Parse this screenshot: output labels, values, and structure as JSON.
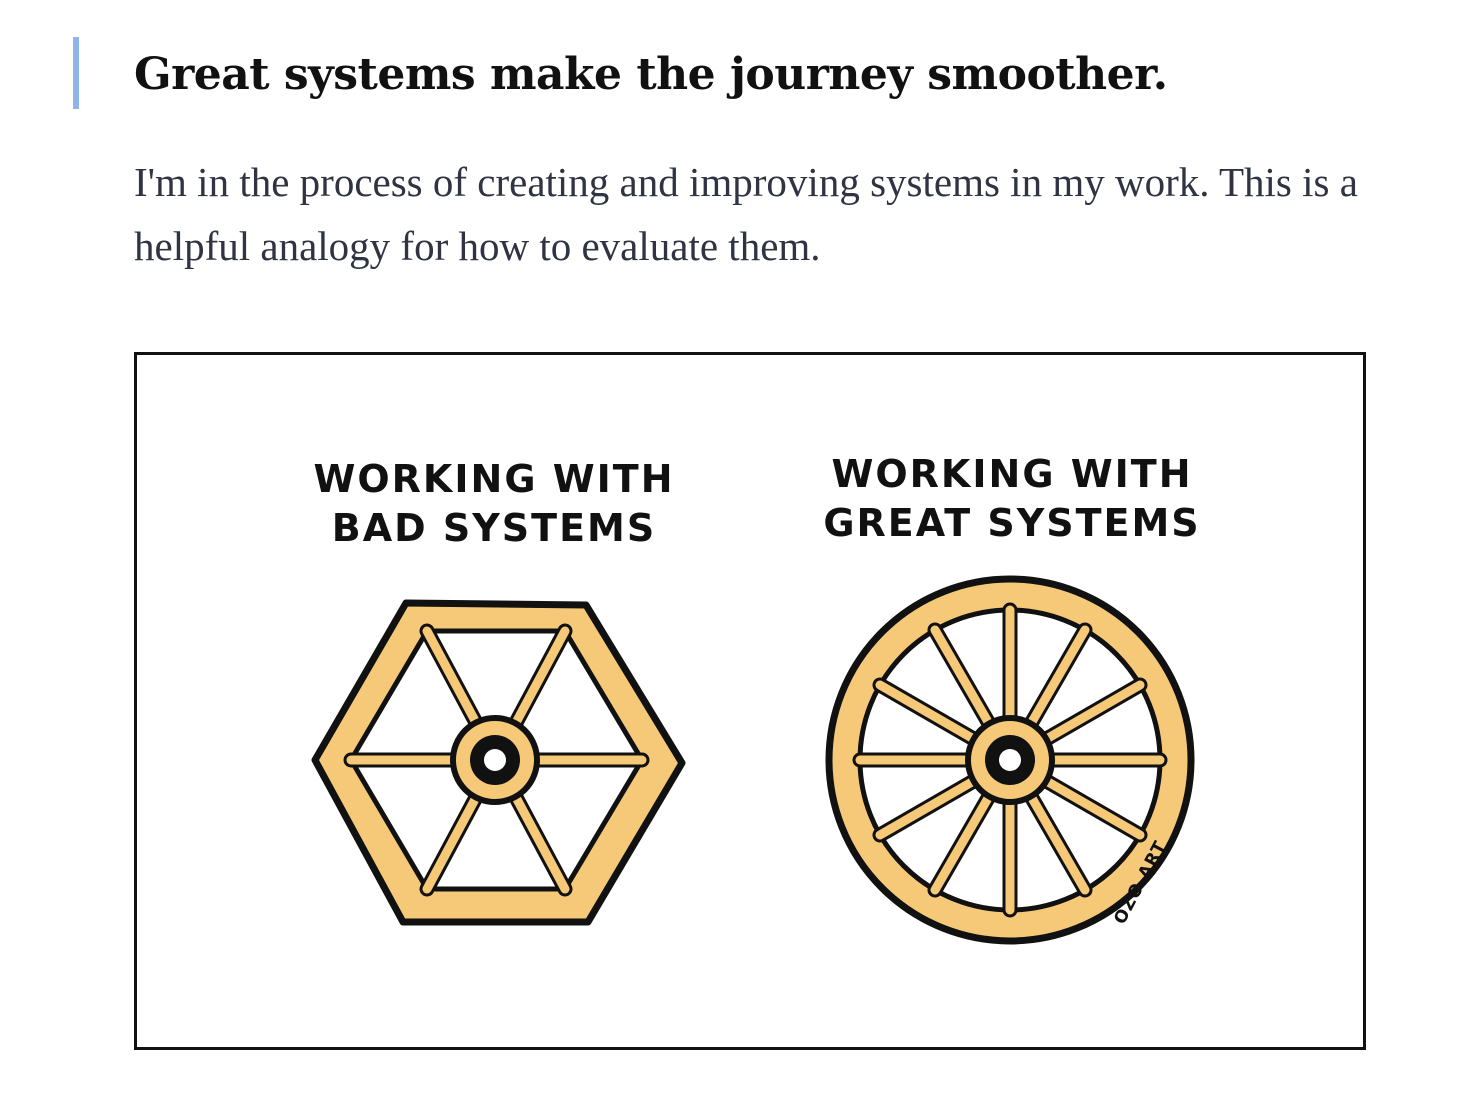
{
  "article": {
    "title": "Great systems make the journey smoother.",
    "paragraph": "I'm in the process of creating and improving systems in my work. This is a helpful analogy for how to evaluate them."
  },
  "illustration": {
    "left_heading_line1": "WORKING WITH",
    "left_heading_line2": "BAD SYSTEMS",
    "right_heading_line1": "WORKING WITH",
    "right_heading_line2": "GREAT SYSTEMS",
    "signature": "OZO.ART",
    "left_icon": "hexagon-wheel-icon",
    "right_icon": "round-wheel-icon",
    "colors": {
      "wood": "#f6c978",
      "ink": "#111111",
      "quote_bar": "#8fb4ea"
    }
  }
}
